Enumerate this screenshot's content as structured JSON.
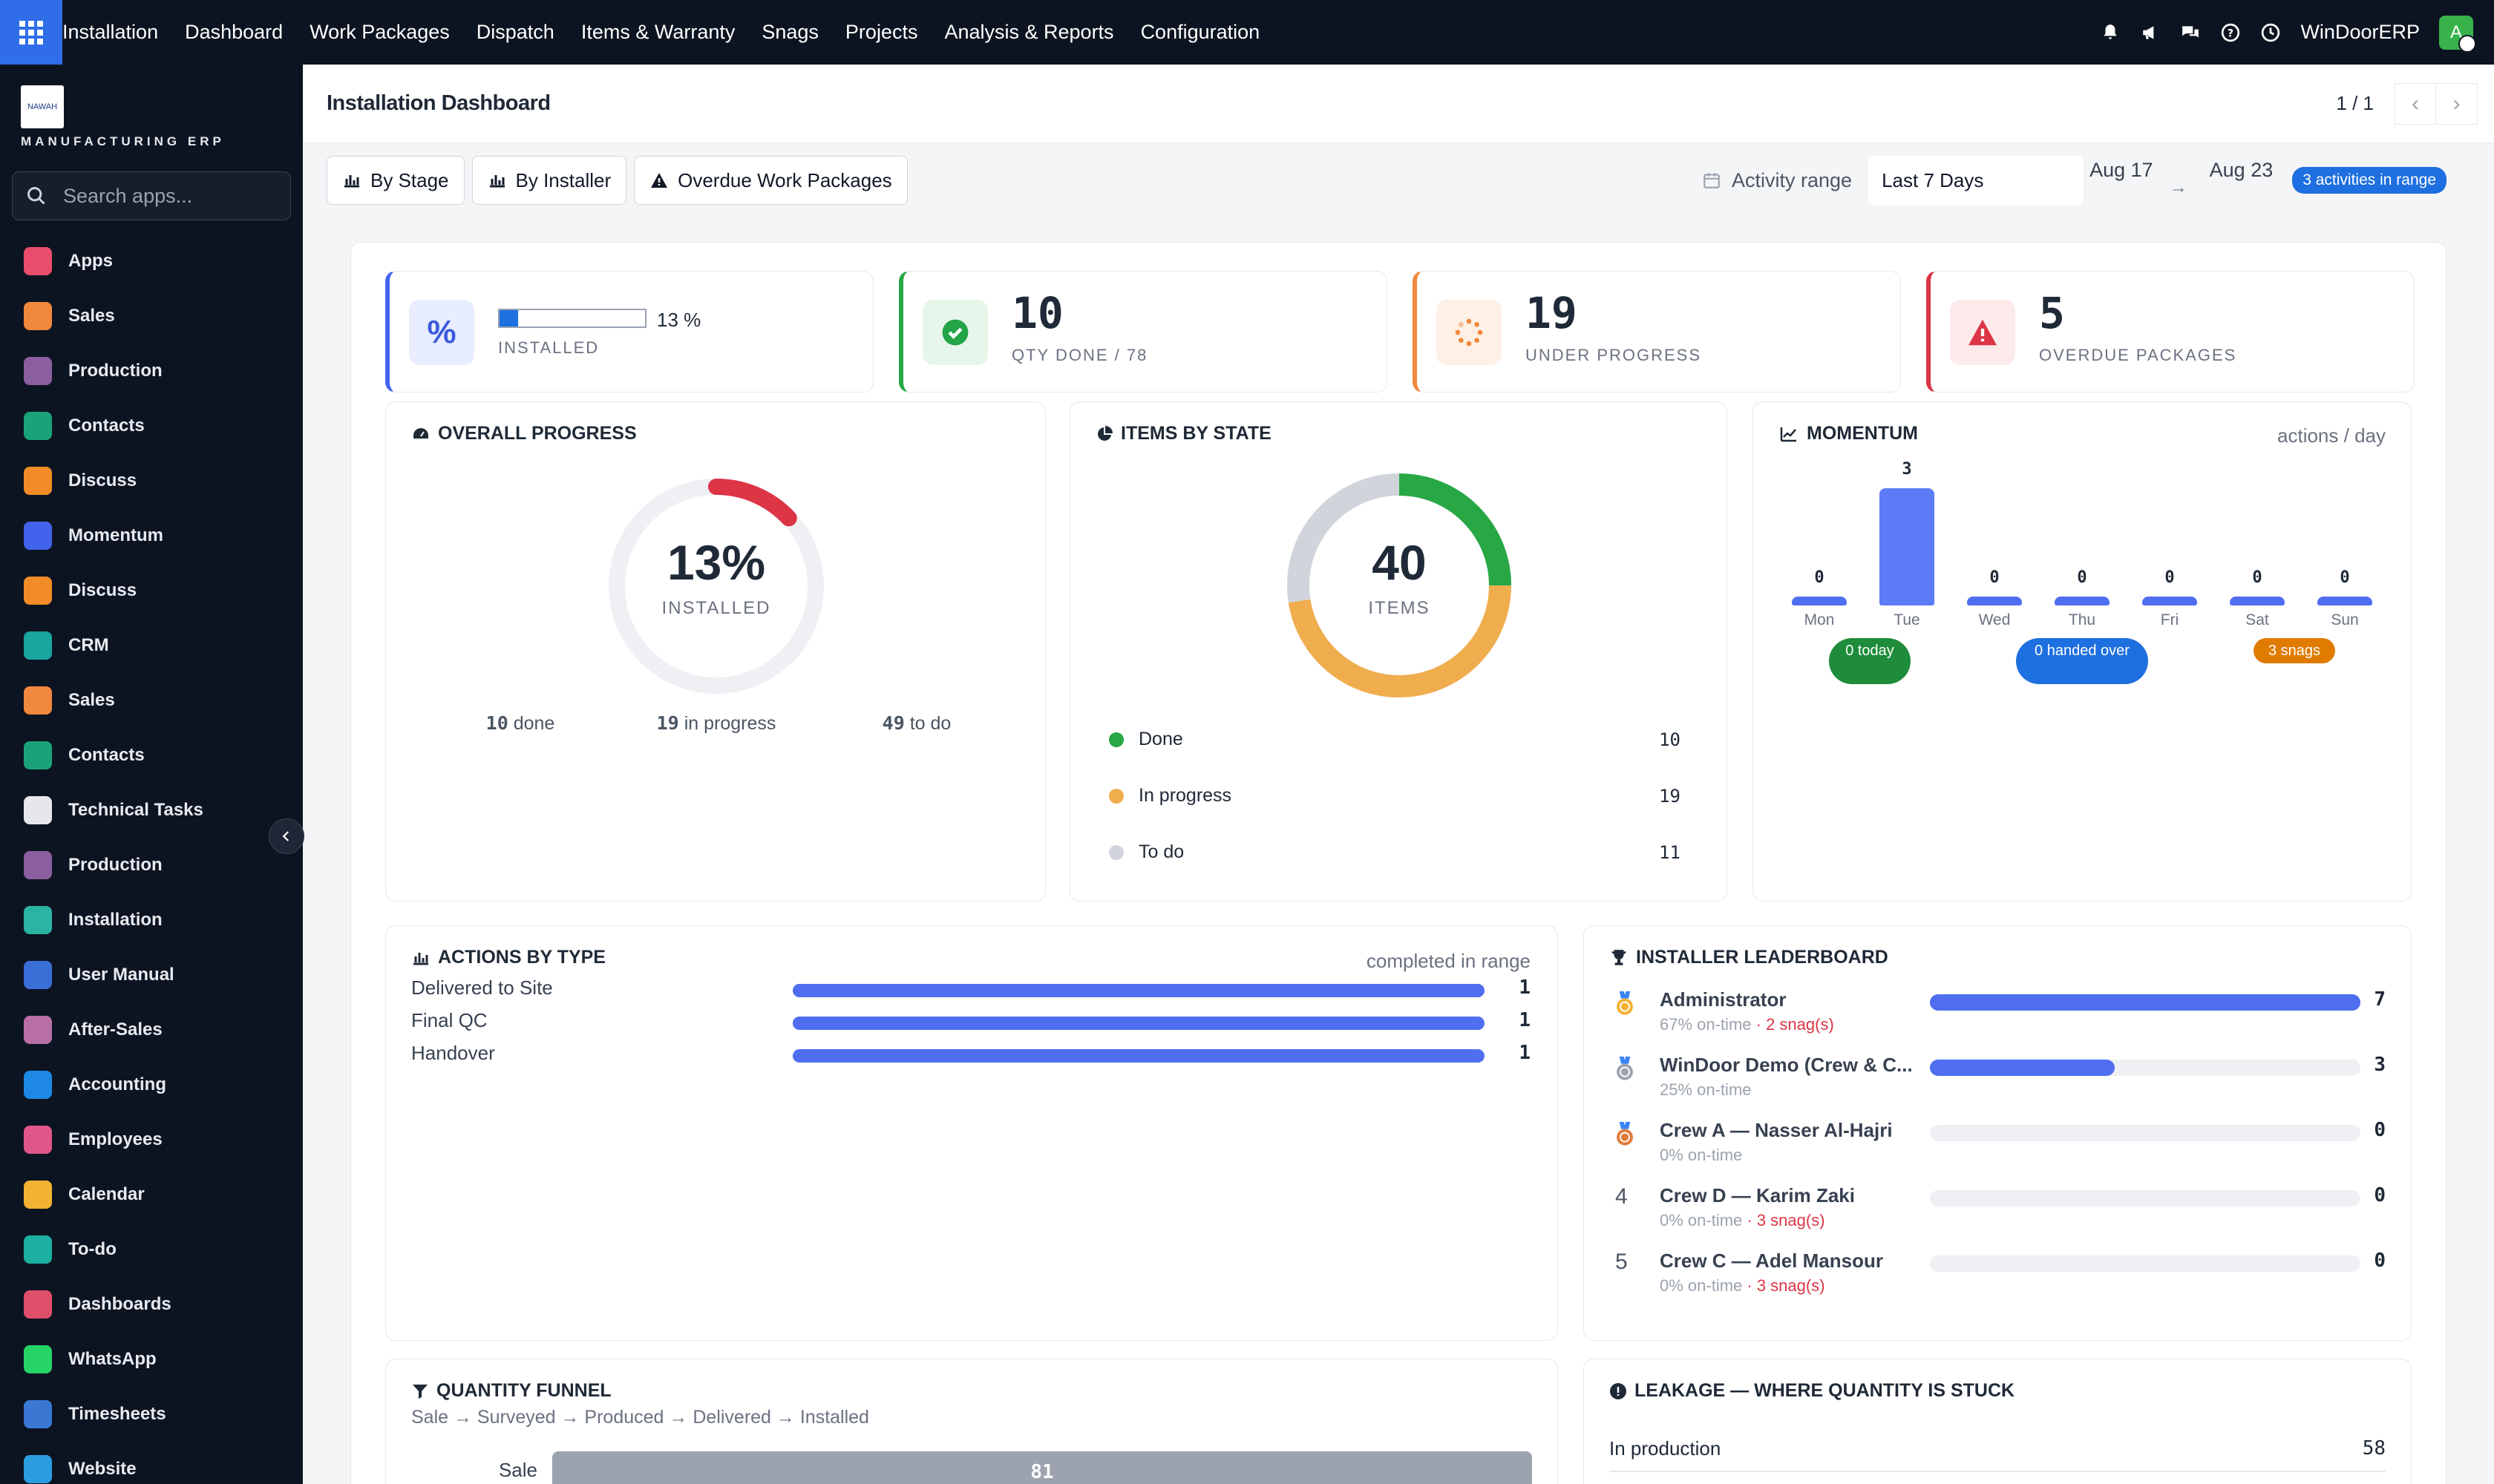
{
  "topbar": {
    "menu": [
      "Installation",
      "Dashboard",
      "Work Packages",
      "Dispatch",
      "Items & Warranty",
      "Snags",
      "Projects",
      "Analysis & Reports",
      "Configuration"
    ],
    "company": "WinDoorERP",
    "avatar_letter": "A"
  },
  "sidebar": {
    "brand": "MANUFACTURING ERP",
    "logo_text": "NAWAH",
    "search_placeholder": "Search apps...",
    "items": [
      {
        "label": "Apps",
        "icon": "apps-icon",
        "color": "#e94d6b"
      },
      {
        "label": "Sales",
        "icon": "sales-chart-icon",
        "color": "#f0883e"
      },
      {
        "label": "Production",
        "icon": "production-icon",
        "color": "#8b5e9f"
      },
      {
        "label": "Contacts",
        "icon": "contacts-icon",
        "color": "#1aa37a"
      },
      {
        "label": "Discuss",
        "icon": "discuss-icon",
        "color": "#f28c28"
      },
      {
        "label": "Momentum",
        "icon": "momentum-icon",
        "color": "#4263eb"
      },
      {
        "label": "Discuss",
        "icon": "discuss-icon",
        "color": "#f28c28"
      },
      {
        "label": "CRM",
        "icon": "crm-icon",
        "color": "#19a5a0"
      },
      {
        "label": "Sales",
        "icon": "sales-chart-icon",
        "color": "#f0883e"
      },
      {
        "label": "Contacts",
        "icon": "contacts-icon",
        "color": "#1aa37a"
      },
      {
        "label": "Technical Tasks",
        "icon": "cube-icon",
        "color": "#e5e7eb"
      },
      {
        "label": "Production",
        "icon": "production-icon",
        "color": "#8b5e9f"
      },
      {
        "label": "Installation",
        "icon": "installation-check-icon",
        "color": "#2bb3a3"
      },
      {
        "label": "User Manual",
        "icon": "book-icon",
        "color": "#3b6fd8"
      },
      {
        "label": "After-Sales",
        "icon": "box-icon",
        "color": "#b86fa5"
      },
      {
        "label": "Accounting",
        "icon": "accounting-icon",
        "color": "#1e88e5"
      },
      {
        "label": "Employees",
        "icon": "employees-icon",
        "color": "#e0568a"
      },
      {
        "label": "Calendar",
        "icon": "calendar-icon",
        "color": "#f2b233"
      },
      {
        "label": "To-do",
        "icon": "todo-icon",
        "color": "#1bb0a0"
      },
      {
        "label": "Dashboards",
        "icon": "dashboards-icon",
        "color": "#e04f6a"
      },
      {
        "label": "WhatsApp",
        "icon": "whatsapp-icon",
        "color": "#25d366"
      },
      {
        "label": "Timesheets",
        "icon": "timesheets-icon",
        "color": "#3a78d4"
      },
      {
        "label": "Website",
        "icon": "website-icon",
        "color": "#2a9de0"
      }
    ]
  },
  "header": {
    "title": "Installation Dashboard",
    "pager": "1 / 1"
  },
  "filters": {
    "buttons": [
      "By Stage",
      "By Installer",
      "Overdue Work Packages"
    ],
    "range_label": "Activity range",
    "range_value": "Last 7 Days",
    "date_from": "Aug 17",
    "date_to": "Aug 23",
    "arrow": "→",
    "badge": "3 activities in range"
  },
  "kpis": {
    "installed": {
      "value_text": "13 %",
      "label": "INSTALLED",
      "progress": 0.13,
      "color": "#4263eb"
    },
    "qty_done": {
      "value": "10",
      "label": "QTY DONE / 78",
      "color": "#28a745"
    },
    "under_progress": {
      "value": "19",
      "label": "UNDER PROGRESS",
      "color": "#f0883e"
    },
    "overdue": {
      "value": "5",
      "label": "OVERDUE PACKAGES",
      "color": "#dc3545"
    }
  },
  "overall_progress": {
    "title": "OVERALL PROGRESS",
    "percent_text": "13%",
    "percent": 0.13,
    "sub": "INSTALLED",
    "stats": [
      {
        "value": "10",
        "label": "done"
      },
      {
        "value": "19",
        "label": "in progress"
      },
      {
        "value": "49",
        "label": "to do"
      }
    ]
  },
  "items_by_state": {
    "title": "ITEMS BY STATE",
    "total": "40",
    "sub": "ITEMS",
    "rows": [
      {
        "label": "Done",
        "value": "10",
        "color": "#28a745"
      },
      {
        "label": "In progress",
        "value": "19",
        "color": "#f0ad4e"
      },
      {
        "label": "To do",
        "value": "11",
        "color": "#d1d5db"
      }
    ]
  },
  "momentum": {
    "title": "MOMENTUM",
    "unit": "actions / day",
    "days": [
      "Mon",
      "Tue",
      "Wed",
      "Thu",
      "Fri",
      "Sat",
      "Sun"
    ],
    "values": [
      0,
      3,
      0,
      0,
      0,
      0,
      0
    ],
    "pills": [
      {
        "text": "0 today",
        "color": "#1e8c3a"
      },
      {
        "text": "0 handed over",
        "color": "#1e6fe0"
      },
      {
        "text": "3 snags",
        "color": "#e07b00"
      }
    ]
  },
  "actions_by_type": {
    "title": "ACTIONS BY TYPE",
    "note": "completed in range",
    "rows": [
      {
        "label": "Delivered to Site",
        "value": "1",
        "fraction": 1
      },
      {
        "label": "Final QC",
        "value": "1",
        "fraction": 1
      },
      {
        "label": "Handover",
        "value": "1",
        "fraction": 1
      }
    ]
  },
  "leaderboard": {
    "title": "INSTALLER LEADERBOARD",
    "rows": [
      {
        "rank": "1",
        "medal": "gold-medal-icon",
        "name": "Administrator",
        "ontime": "67% on-time",
        "snags": " · 2 snag(s)",
        "value": "7",
        "fraction": 1
      },
      {
        "rank": "2",
        "medal": "silver-medal-icon",
        "name": "WinDoor Demo (Crew & C...",
        "ontime": "25% on-time",
        "snags": "",
        "value": "3",
        "fraction": 0.43
      },
      {
        "rank": "3",
        "medal": "bronze-medal-icon",
        "name": "Crew A — Nasser Al-Hajri",
        "ontime": "0% on-time",
        "snags": "",
        "value": "0",
        "fraction": 0
      },
      {
        "rank": "4",
        "medal": "",
        "name": "Crew D — Karim Zaki",
        "ontime": "0% on-time",
        "snags": " · 3 snag(s)",
        "value": "0",
        "fraction": 0
      },
      {
        "rank": "5",
        "medal": "",
        "name": "Crew C — Adel Mansour",
        "ontime": "0% on-time",
        "snags": " · 3 snag(s)",
        "value": "0",
        "fraction": 0
      }
    ]
  },
  "funnel": {
    "title": "QUANTITY FUNNEL",
    "subtitle": "Sale → Surveyed → Produced → Delivered → Installed",
    "rows": [
      {
        "label": "Sale",
        "value": "81"
      }
    ]
  },
  "leakage": {
    "title": "LEAKAGE — WHERE QUANTITY IS STUCK",
    "rows": [
      {
        "label": "In production",
        "value": "58"
      }
    ]
  }
}
